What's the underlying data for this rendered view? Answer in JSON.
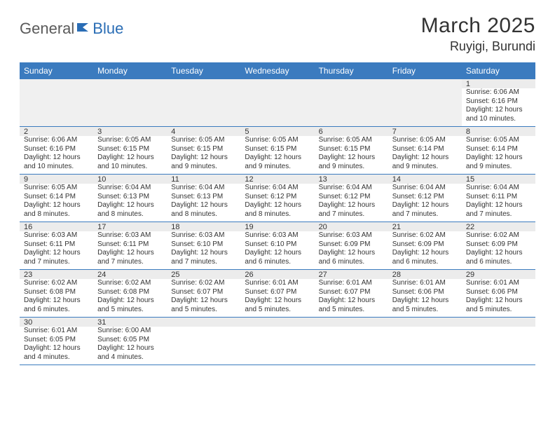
{
  "header": {
    "logo_part1": "General",
    "logo_part2": "Blue",
    "month_title": "March 2025",
    "location": "Ruyigi, Burundi"
  },
  "colors": {
    "header_bg": "#3b7bbf",
    "header_text": "#ffffff",
    "border": "#3b7bbf",
    "logo_gray": "#5a5a5a",
    "logo_blue": "#2a6db5"
  },
  "day_names": [
    "Sunday",
    "Monday",
    "Tuesday",
    "Wednesday",
    "Thursday",
    "Friday",
    "Saturday"
  ],
  "weeks": [
    {
      "nums": [
        "",
        "",
        "",
        "",
        "",
        "",
        "1"
      ],
      "cells": [
        null,
        null,
        null,
        null,
        null,
        null,
        {
          "sunrise": "Sunrise: 6:06 AM",
          "sunset": "Sunset: 6:16 PM",
          "day1": "Daylight: 12 hours",
          "day2": "and 10 minutes."
        }
      ]
    },
    {
      "nums": [
        "2",
        "3",
        "4",
        "5",
        "6",
        "7",
        "8"
      ],
      "cells": [
        {
          "sunrise": "Sunrise: 6:06 AM",
          "sunset": "Sunset: 6:16 PM",
          "day1": "Daylight: 12 hours",
          "day2": "and 10 minutes."
        },
        {
          "sunrise": "Sunrise: 6:05 AM",
          "sunset": "Sunset: 6:15 PM",
          "day1": "Daylight: 12 hours",
          "day2": "and 10 minutes."
        },
        {
          "sunrise": "Sunrise: 6:05 AM",
          "sunset": "Sunset: 6:15 PM",
          "day1": "Daylight: 12 hours",
          "day2": "and 9 minutes."
        },
        {
          "sunrise": "Sunrise: 6:05 AM",
          "sunset": "Sunset: 6:15 PM",
          "day1": "Daylight: 12 hours",
          "day2": "and 9 minutes."
        },
        {
          "sunrise": "Sunrise: 6:05 AM",
          "sunset": "Sunset: 6:15 PM",
          "day1": "Daylight: 12 hours",
          "day2": "and 9 minutes."
        },
        {
          "sunrise": "Sunrise: 6:05 AM",
          "sunset": "Sunset: 6:14 PM",
          "day1": "Daylight: 12 hours",
          "day2": "and 9 minutes."
        },
        {
          "sunrise": "Sunrise: 6:05 AM",
          "sunset": "Sunset: 6:14 PM",
          "day1": "Daylight: 12 hours",
          "day2": "and 9 minutes."
        }
      ]
    },
    {
      "nums": [
        "9",
        "10",
        "11",
        "12",
        "13",
        "14",
        "15"
      ],
      "cells": [
        {
          "sunrise": "Sunrise: 6:05 AM",
          "sunset": "Sunset: 6:14 PM",
          "day1": "Daylight: 12 hours",
          "day2": "and 8 minutes."
        },
        {
          "sunrise": "Sunrise: 6:04 AM",
          "sunset": "Sunset: 6:13 PM",
          "day1": "Daylight: 12 hours",
          "day2": "and 8 minutes."
        },
        {
          "sunrise": "Sunrise: 6:04 AM",
          "sunset": "Sunset: 6:13 PM",
          "day1": "Daylight: 12 hours",
          "day2": "and 8 minutes."
        },
        {
          "sunrise": "Sunrise: 6:04 AM",
          "sunset": "Sunset: 6:12 PM",
          "day1": "Daylight: 12 hours",
          "day2": "and 8 minutes."
        },
        {
          "sunrise": "Sunrise: 6:04 AM",
          "sunset": "Sunset: 6:12 PM",
          "day1": "Daylight: 12 hours",
          "day2": "and 7 minutes."
        },
        {
          "sunrise": "Sunrise: 6:04 AM",
          "sunset": "Sunset: 6:12 PM",
          "day1": "Daylight: 12 hours",
          "day2": "and 7 minutes."
        },
        {
          "sunrise": "Sunrise: 6:04 AM",
          "sunset": "Sunset: 6:11 PM",
          "day1": "Daylight: 12 hours",
          "day2": "and 7 minutes."
        }
      ]
    },
    {
      "nums": [
        "16",
        "17",
        "18",
        "19",
        "20",
        "21",
        "22"
      ],
      "cells": [
        {
          "sunrise": "Sunrise: 6:03 AM",
          "sunset": "Sunset: 6:11 PM",
          "day1": "Daylight: 12 hours",
          "day2": "and 7 minutes."
        },
        {
          "sunrise": "Sunrise: 6:03 AM",
          "sunset": "Sunset: 6:11 PM",
          "day1": "Daylight: 12 hours",
          "day2": "and 7 minutes."
        },
        {
          "sunrise": "Sunrise: 6:03 AM",
          "sunset": "Sunset: 6:10 PM",
          "day1": "Daylight: 12 hours",
          "day2": "and 7 minutes."
        },
        {
          "sunrise": "Sunrise: 6:03 AM",
          "sunset": "Sunset: 6:10 PM",
          "day1": "Daylight: 12 hours",
          "day2": "and 6 minutes."
        },
        {
          "sunrise": "Sunrise: 6:03 AM",
          "sunset": "Sunset: 6:09 PM",
          "day1": "Daylight: 12 hours",
          "day2": "and 6 minutes."
        },
        {
          "sunrise": "Sunrise: 6:02 AM",
          "sunset": "Sunset: 6:09 PM",
          "day1": "Daylight: 12 hours",
          "day2": "and 6 minutes."
        },
        {
          "sunrise": "Sunrise: 6:02 AM",
          "sunset": "Sunset: 6:09 PM",
          "day1": "Daylight: 12 hours",
          "day2": "and 6 minutes."
        }
      ]
    },
    {
      "nums": [
        "23",
        "24",
        "25",
        "26",
        "27",
        "28",
        "29"
      ],
      "cells": [
        {
          "sunrise": "Sunrise: 6:02 AM",
          "sunset": "Sunset: 6:08 PM",
          "day1": "Daylight: 12 hours",
          "day2": "and 6 minutes."
        },
        {
          "sunrise": "Sunrise: 6:02 AM",
          "sunset": "Sunset: 6:08 PM",
          "day1": "Daylight: 12 hours",
          "day2": "and 5 minutes."
        },
        {
          "sunrise": "Sunrise: 6:02 AM",
          "sunset": "Sunset: 6:07 PM",
          "day1": "Daylight: 12 hours",
          "day2": "and 5 minutes."
        },
        {
          "sunrise": "Sunrise: 6:01 AM",
          "sunset": "Sunset: 6:07 PM",
          "day1": "Daylight: 12 hours",
          "day2": "and 5 minutes."
        },
        {
          "sunrise": "Sunrise: 6:01 AM",
          "sunset": "Sunset: 6:07 PM",
          "day1": "Daylight: 12 hours",
          "day2": "and 5 minutes."
        },
        {
          "sunrise": "Sunrise: 6:01 AM",
          "sunset": "Sunset: 6:06 PM",
          "day1": "Daylight: 12 hours",
          "day2": "and 5 minutes."
        },
        {
          "sunrise": "Sunrise: 6:01 AM",
          "sunset": "Sunset: 6:06 PM",
          "day1": "Daylight: 12 hours",
          "day2": "and 5 minutes."
        }
      ]
    },
    {
      "nums": [
        "30",
        "31",
        "",
        "",
        "",
        "",
        ""
      ],
      "cells": [
        {
          "sunrise": "Sunrise: 6:01 AM",
          "sunset": "Sunset: 6:05 PM",
          "day1": "Daylight: 12 hours",
          "day2": "and 4 minutes."
        },
        {
          "sunrise": "Sunrise: 6:00 AM",
          "sunset": "Sunset: 6:05 PM",
          "day1": "Daylight: 12 hours",
          "day2": "and 4 minutes."
        },
        null,
        null,
        null,
        null,
        null
      ]
    }
  ]
}
